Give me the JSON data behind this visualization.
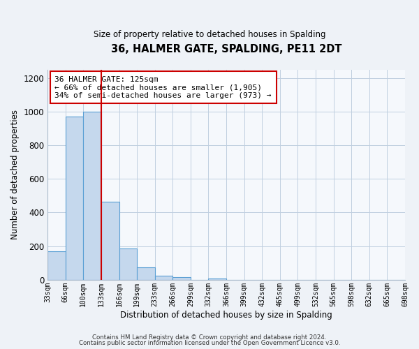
{
  "title": "36, HALMER GATE, SPALDING, PE11 2DT",
  "subtitle": "Size of property relative to detached houses in Spalding",
  "xlabel": "Distribution of detached houses by size in Spalding",
  "ylabel": "Number of detached properties",
  "bin_edges": [
    0,
    1,
    2,
    3,
    4,
    5,
    6,
    7,
    8,
    9,
    10,
    11,
    12,
    13,
    14,
    15,
    16,
    17,
    18,
    19,
    20
  ],
  "bin_labels": [
    "33sqm",
    "66sqm",
    "100sqm",
    "133sqm",
    "166sqm",
    "199sqm",
    "233sqm",
    "266sqm",
    "299sqm",
    "332sqm",
    "366sqm",
    "399sqm",
    "432sqm",
    "465sqm",
    "499sqm",
    "532sqm",
    "565sqm",
    "598sqm",
    "632sqm",
    "665sqm",
    "698sqm"
  ],
  "bar_heights": [
    170,
    970,
    1000,
    465,
    185,
    75,
    25,
    15,
    0,
    10,
    0,
    0,
    0,
    0,
    0,
    0,
    0,
    0,
    0,
    0
  ],
  "bar_color": "#c5d8ed",
  "bar_edge_color": "#5a9fd4",
  "red_line_x": 3,
  "annotation_title": "36 HALMER GATE: 125sqm",
  "annotation_line1": "← 66% of detached houses are smaller (1,905)",
  "annotation_line2": "34% of semi-detached houses are larger (973) →",
  "vline_color": "#cc0000",
  "annotation_box_edge": "#cc0000",
  "ylim": [
    0,
    1250
  ],
  "yticks": [
    0,
    200,
    400,
    600,
    800,
    1000,
    1200
  ],
  "footer1": "Contains HM Land Registry data © Crown copyright and database right 2024.",
  "footer2": "Contains public sector information licensed under the Open Government Licence v3.0.",
  "bg_color": "#eef2f7",
  "plot_bg_color": "#f5f8fc"
}
